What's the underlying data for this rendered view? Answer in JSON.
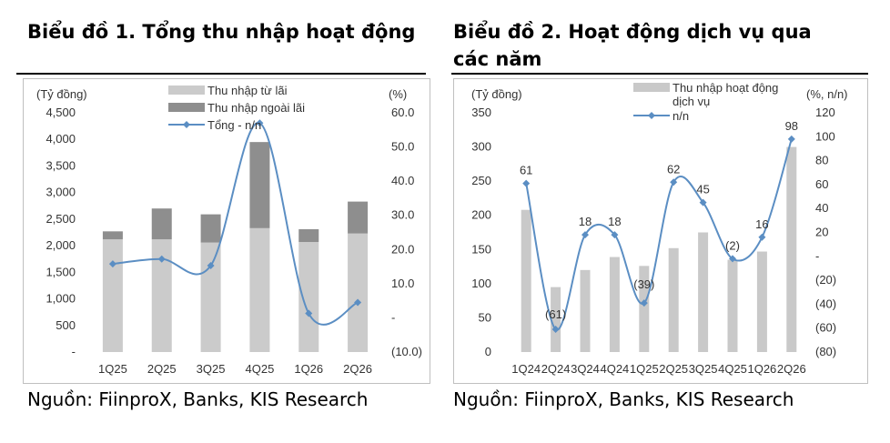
{
  "chart1": {
    "title": "Biểu đồ 1. Tổng thu nhập hoạt động",
    "source": "Nguồn: FiinproX, Banks, KIS Research",
    "chart_data": {
      "type": "bar",
      "stacked": true,
      "categories": [
        "1Q25",
        "2Q25",
        "3Q25",
        "4Q25",
        "1Q26",
        "2Q26"
      ],
      "series": [
        {
          "name": "Thu nhập từ lãi",
          "type": "bar",
          "axis": "left",
          "values": [
            2120,
            2120,
            2060,
            2330,
            2070,
            2230
          ]
        },
        {
          "name": "Thu nhập ngoài lãi",
          "type": "bar",
          "axis": "left",
          "values": [
            150,
            580,
            530,
            1620,
            240,
            600
          ]
        },
        {
          "name": "Tổng - n/n",
          "type": "line",
          "axis": "right",
          "values": [
            15.8,
            17.2,
            15.3,
            57.0,
            1.3,
            4.5
          ]
        }
      ],
      "ylabel": "(Tỷ đồng)",
      "y2label": "(%)",
      "ylim": [
        0,
        4500
      ],
      "y2lim": [
        -10,
        60
      ],
      "yticks": [
        "-",
        "500",
        "1,000",
        "1,500",
        "2,000",
        "2,500",
        "3,000",
        "3,500",
        "4,000",
        "4,500"
      ],
      "y2ticks": [
        "(10.0)",
        "-",
        "10.0",
        "20.0",
        "30.0",
        "40.0",
        "50.0",
        "60.0"
      ],
      "legend_position": "top",
      "colors": {
        "interest": "#cbcbcb",
        "noninterest": "#8e8e8e",
        "line": "#5b8ec3",
        "frame": "#bfbfbf"
      }
    }
  },
  "chart2": {
    "title": "Biểu đồ 2. Hoạt động dịch vụ qua các năm",
    "source": "Nguồn: FiinproX, Banks, KIS Research",
    "chart_data": {
      "type": "bar",
      "categories": [
        "1Q24",
        "2Q24",
        "3Q24",
        "4Q24",
        "1Q25",
        "2Q25",
        "3Q25",
        "4Q25",
        "1Q26",
        "2Q26"
      ],
      "series": [
        {
          "name": "Thu nhập hoạt động dịch vụ",
          "type": "bar",
          "axis": "left",
          "values": [
            208,
            95,
            120,
            139,
            126,
            152,
            175,
            135,
            147,
            300
          ]
        },
        {
          "name": "n/n",
          "type": "line",
          "axis": "right",
          "values": [
            61,
            -61,
            18,
            18,
            -39,
            62,
            45,
            -2,
            16,
            98
          ]
        }
      ],
      "data_labels": [
        "61",
        "(61)",
        "18",
        "18",
        "(39)",
        "62",
        "45",
        "(2)",
        "16",
        "98"
      ],
      "ylabel": "(Tỷ đồng)",
      "y2label": "(%, n/n)",
      "ylim": [
        0,
        350
      ],
      "y2lim": [
        -80,
        120
      ],
      "yticks": [
        "0",
        "50",
        "100",
        "150",
        "200",
        "250",
        "300",
        "350"
      ],
      "y2ticks": [
        "(80)",
        "(60)",
        "(40)",
        "(20)",
        "-",
        "20",
        "40",
        "60",
        "80",
        "100",
        "120"
      ],
      "legend_position": "top",
      "colors": {
        "bar": "#c9c9c9",
        "line": "#5b8ec3",
        "frame": "#bfbfbf"
      }
    }
  }
}
